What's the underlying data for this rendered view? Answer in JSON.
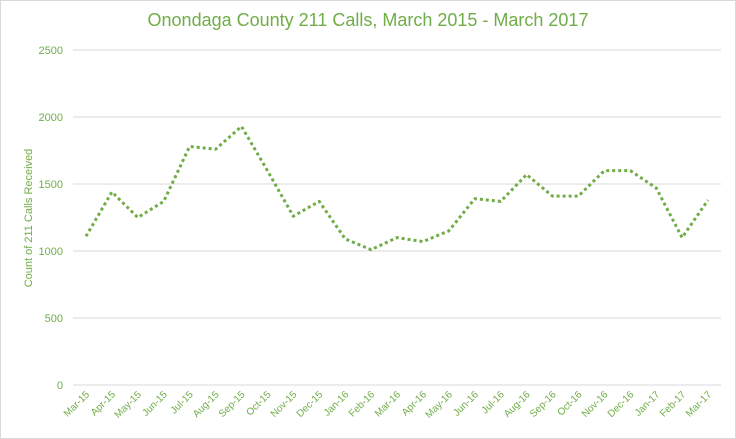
{
  "colors": {
    "accent": "#70ad47",
    "grid": "#d9d9d9",
    "background": "#ffffff"
  },
  "chart_data": {
    "type": "line",
    "title": "Onondaga County 211 Calls, March 2015 - March 2017",
    "xlabel": "",
    "ylabel": "Count  of 211 Calls Received",
    "ylim": [
      0,
      2500
    ],
    "yticks": [
      0,
      500,
      1000,
      1500,
      2000,
      2500
    ],
    "grid": true,
    "legend": "none",
    "line_style": "dotted",
    "categories": [
      "Mar-15",
      "Apr-15",
      "May-15",
      "Jun-15",
      "Jul-15",
      "Aug-15",
      "Sep-15",
      "Oct-15",
      "Nov-15",
      "Dec-15",
      "Jan-16",
      "Feb-16",
      "Mar-16",
      "Apr-16",
      "May-16",
      "Jun-16",
      "Jul-16",
      "Aug-16",
      "Sep-16",
      "Oct-16",
      "Nov-16",
      "Dec-16",
      "Jan-17",
      "Feb-17",
      "Mar-17"
    ],
    "series": [
      {
        "name": "",
        "color": "#70ad47",
        "values": [
          1110,
          1440,
          1250,
          1370,
          1780,
          1760,
          1930,
          1600,
          1260,
          1370,
          1090,
          1010,
          1100,
          1070,
          1150,
          1390,
          1370,
          1570,
          1410,
          1410,
          1600,
          1600,
          1470,
          1100,
          1380
        ]
      }
    ]
  }
}
